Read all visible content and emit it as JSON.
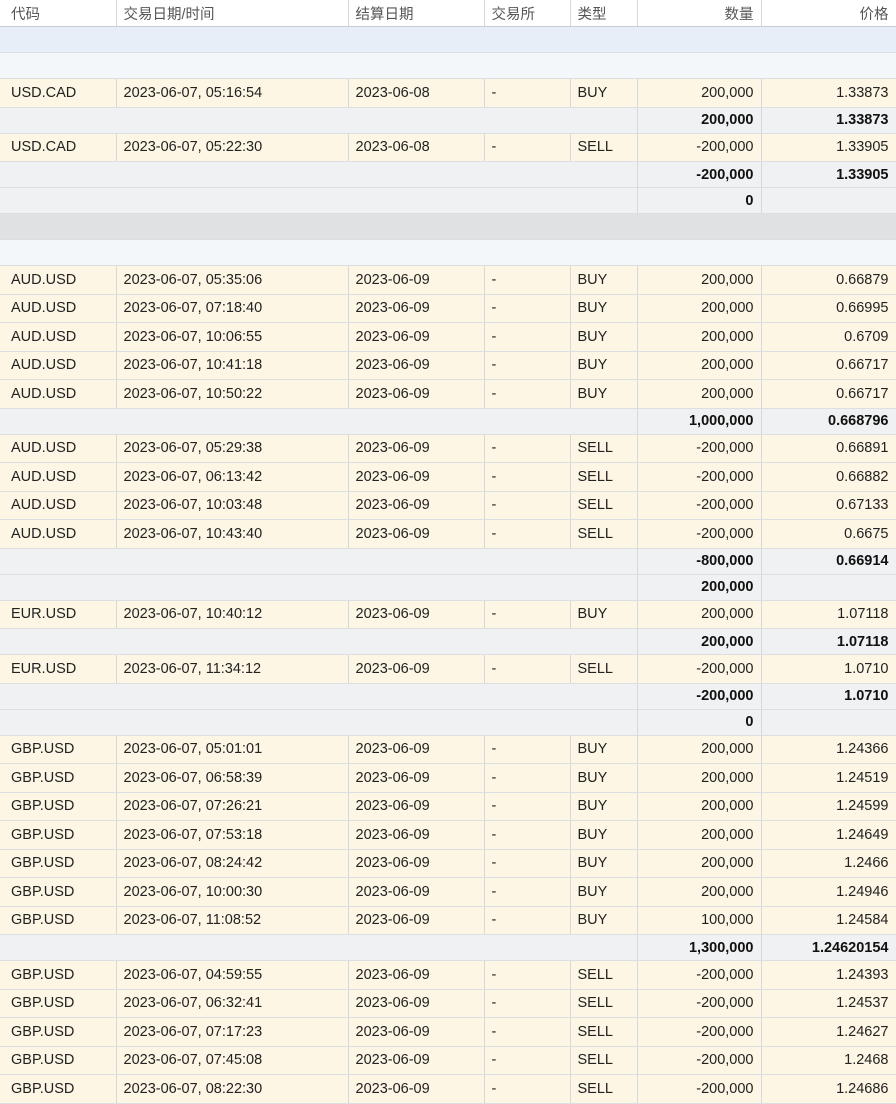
{
  "headers": {
    "symbol": "代码",
    "trade_datetime": "交易日期/时间",
    "settle_date": "结算日期",
    "exchange": "交易所",
    "type": "类型",
    "quantity": "数量",
    "price": "价格"
  },
  "rows": [
    {
      "kind": "spacer-blue"
    },
    {
      "kind": "spacer-white"
    },
    {
      "kind": "trade",
      "symbol": "USD.CAD",
      "datetime": "2023-06-07, 05:16:54",
      "settle": "2023-06-08",
      "exchange": "-",
      "type": "BUY",
      "qty": "200,000",
      "price": "1.33873"
    },
    {
      "kind": "subtotal",
      "qty": "200,000",
      "price": "1.33873"
    },
    {
      "kind": "trade",
      "symbol": "USD.CAD",
      "datetime": "2023-06-07, 05:22:30",
      "settle": "2023-06-08",
      "exchange": "-",
      "type": "SELL",
      "qty": "-200,000",
      "price": "1.33905"
    },
    {
      "kind": "subtotal",
      "qty": "-200,000",
      "price": "1.33905"
    },
    {
      "kind": "net",
      "qty": "0"
    },
    {
      "kind": "spacer-grey"
    },
    {
      "kind": "spacer-white"
    },
    {
      "kind": "trade",
      "symbol": "AUD.USD",
      "datetime": "2023-06-07, 05:35:06",
      "settle": "2023-06-09",
      "exchange": "-",
      "type": "BUY",
      "qty": "200,000",
      "price": "0.66879"
    },
    {
      "kind": "trade",
      "symbol": "AUD.USD",
      "datetime": "2023-06-07, 07:18:40",
      "settle": "2023-06-09",
      "exchange": "-",
      "type": "BUY",
      "qty": "200,000",
      "price": "0.66995"
    },
    {
      "kind": "trade",
      "symbol": "AUD.USD",
      "datetime": "2023-06-07, 10:06:55",
      "settle": "2023-06-09",
      "exchange": "-",
      "type": "BUY",
      "qty": "200,000",
      "price": "0.6709"
    },
    {
      "kind": "trade",
      "symbol": "AUD.USD",
      "datetime": "2023-06-07, 10:41:18",
      "settle": "2023-06-09",
      "exchange": "-",
      "type": "BUY",
      "qty": "200,000",
      "price": "0.66717"
    },
    {
      "kind": "trade",
      "symbol": "AUD.USD",
      "datetime": "2023-06-07, 10:50:22",
      "settle": "2023-06-09",
      "exchange": "-",
      "type": "BUY",
      "qty": "200,000",
      "price": "0.66717"
    },
    {
      "kind": "subtotal",
      "qty": "1,000,000",
      "price": "0.668796"
    },
    {
      "kind": "trade",
      "symbol": "AUD.USD",
      "datetime": "2023-06-07, 05:29:38",
      "settle": "2023-06-09",
      "exchange": "-",
      "type": "SELL",
      "qty": "-200,000",
      "price": "0.66891"
    },
    {
      "kind": "trade",
      "symbol": "AUD.USD",
      "datetime": "2023-06-07, 06:13:42",
      "settle": "2023-06-09",
      "exchange": "-",
      "type": "SELL",
      "qty": "-200,000",
      "price": "0.66882"
    },
    {
      "kind": "trade",
      "symbol": "AUD.USD",
      "datetime": "2023-06-07, 10:03:48",
      "settle": "2023-06-09",
      "exchange": "-",
      "type": "SELL",
      "qty": "-200,000",
      "price": "0.67133"
    },
    {
      "kind": "trade",
      "symbol": "AUD.USD",
      "datetime": "2023-06-07, 10:43:40",
      "settle": "2023-06-09",
      "exchange": "-",
      "type": "SELL",
      "qty": "-200,000",
      "price": "0.6675"
    },
    {
      "kind": "subtotal",
      "qty": "-800,000",
      "price": "0.66914"
    },
    {
      "kind": "net",
      "qty": "200,000"
    },
    {
      "kind": "trade",
      "symbol": "EUR.USD",
      "datetime": "2023-06-07, 10:40:12",
      "settle": "2023-06-09",
      "exchange": "-",
      "type": "BUY",
      "qty": "200,000",
      "price": "1.07118"
    },
    {
      "kind": "subtotal",
      "qty": "200,000",
      "price": "1.07118"
    },
    {
      "kind": "trade",
      "symbol": "EUR.USD",
      "datetime": "2023-06-07, 11:34:12",
      "settle": "2023-06-09",
      "exchange": "-",
      "type": "SELL",
      "qty": "-200,000",
      "price": "1.0710"
    },
    {
      "kind": "subtotal",
      "qty": "-200,000",
      "price": "1.0710"
    },
    {
      "kind": "net",
      "qty": "0"
    },
    {
      "kind": "trade",
      "symbol": "GBP.USD",
      "datetime": "2023-06-07, 05:01:01",
      "settle": "2023-06-09",
      "exchange": "-",
      "type": "BUY",
      "qty": "200,000",
      "price": "1.24366"
    },
    {
      "kind": "trade",
      "symbol": "GBP.USD",
      "datetime": "2023-06-07, 06:58:39",
      "settle": "2023-06-09",
      "exchange": "-",
      "type": "BUY",
      "qty": "200,000",
      "price": "1.24519"
    },
    {
      "kind": "trade",
      "symbol": "GBP.USD",
      "datetime": "2023-06-07, 07:26:21",
      "settle": "2023-06-09",
      "exchange": "-",
      "type": "BUY",
      "qty": "200,000",
      "price": "1.24599"
    },
    {
      "kind": "trade",
      "symbol": "GBP.USD",
      "datetime": "2023-06-07, 07:53:18",
      "settle": "2023-06-09",
      "exchange": "-",
      "type": "BUY",
      "qty": "200,000",
      "price": "1.24649"
    },
    {
      "kind": "trade",
      "symbol": "GBP.USD",
      "datetime": "2023-06-07, 08:24:42",
      "settle": "2023-06-09",
      "exchange": "-",
      "type": "BUY",
      "qty": "200,000",
      "price": "1.2466"
    },
    {
      "kind": "trade",
      "symbol": "GBP.USD",
      "datetime": "2023-06-07, 10:00:30",
      "settle": "2023-06-09",
      "exchange": "-",
      "type": "BUY",
      "qty": "200,000",
      "price": "1.24946"
    },
    {
      "kind": "trade",
      "symbol": "GBP.USD",
      "datetime": "2023-06-07, 11:08:52",
      "settle": "2023-06-09",
      "exchange": "-",
      "type": "BUY",
      "qty": "100,000",
      "price": "1.24584"
    },
    {
      "kind": "subtotal",
      "qty": "1,300,000",
      "price": "1.24620154"
    },
    {
      "kind": "trade",
      "symbol": "GBP.USD",
      "datetime": "2023-06-07, 04:59:55",
      "settle": "2023-06-09",
      "exchange": "-",
      "type": "SELL",
      "qty": "-200,000",
      "price": "1.24393"
    },
    {
      "kind": "trade",
      "symbol": "GBP.USD",
      "datetime": "2023-06-07, 06:32:41",
      "settle": "2023-06-09",
      "exchange": "-",
      "type": "SELL",
      "qty": "-200,000",
      "price": "1.24537"
    },
    {
      "kind": "trade",
      "symbol": "GBP.USD",
      "datetime": "2023-06-07, 07:17:23",
      "settle": "2023-06-09",
      "exchange": "-",
      "type": "SELL",
      "qty": "-200,000",
      "price": "1.24627"
    },
    {
      "kind": "trade",
      "symbol": "GBP.USD",
      "datetime": "2023-06-07, 07:45:08",
      "settle": "2023-06-09",
      "exchange": "-",
      "type": "SELL",
      "qty": "-200,000",
      "price": "1.2468"
    },
    {
      "kind": "trade",
      "symbol": "GBP.USD",
      "datetime": "2023-06-07, 08:22:30",
      "settle": "2023-06-09",
      "exchange": "-",
      "type": "SELL",
      "qty": "-200,000",
      "price": "1.24686"
    }
  ]
}
